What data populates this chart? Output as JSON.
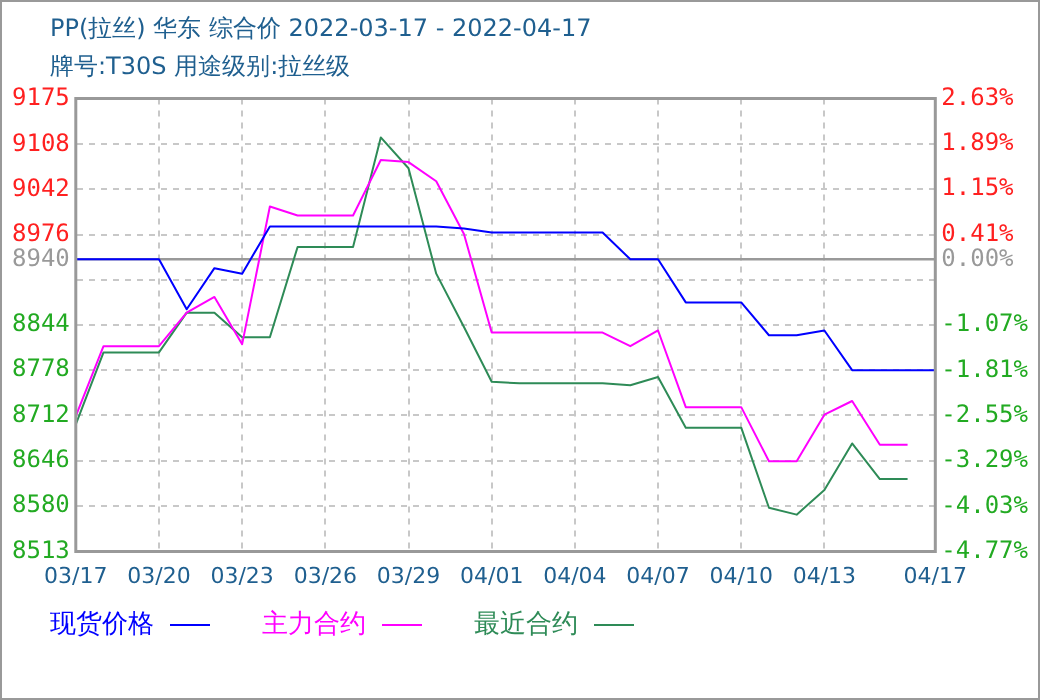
{
  "chart_data": {
    "type": "line",
    "title": "PP(拉丝) 华东 综合价 2022-03-17 - 2022-04-17",
    "subtitle": "牌号:T30S 用途级别:拉丝级",
    "categories": [
      "03/17",
      null,
      null,
      "03/20",
      null,
      null,
      "03/23",
      null,
      null,
      "03/26",
      null,
      null,
      "03/29",
      null,
      null,
      "04/01",
      null,
      null,
      "04/04",
      null,
      null,
      "04/07",
      null,
      null,
      "04/10",
      null,
      null,
      "04/13",
      null,
      null,
      null,
      "04/17"
    ],
    "series": [
      {
        "name": "现货价格",
        "color": "#0000ff",
        "values": [
          8940,
          8940,
          8940,
          8940,
          8867,
          8927,
          8919,
          8988,
          8988,
          8988,
          8988,
          8988,
          8988,
          8988,
          8985,
          8979,
          8979,
          8979,
          8979,
          8979,
          8940,
          8940,
          8877,
          8877,
          8877,
          8829,
          8829,
          8836,
          8778,
          8778,
          8778,
          8778
        ]
      },
      {
        "name": "主力合约",
        "color": "#ff00ff",
        "values": [
          8711,
          8813,
          8813,
          8813,
          8862,
          8885,
          8816,
          9017,
          9004,
          9004,
          9004,
          9085,
          9082,
          9054,
          8977,
          8833,
          8833,
          8833,
          8833,
          8833,
          8813,
          8836,
          8724,
          8724,
          8724,
          8645,
          8645,
          8713,
          8733,
          8669,
          8669,
          null
        ]
      },
      {
        "name": "最近合约",
        "color": "#2e8b57",
        "values": [
          8699,
          8804,
          8804,
          8804,
          8862,
          8862,
          8826,
          8826,
          8958,
          8958,
          8958,
          9118,
          9073,
          8919,
          8841,
          8761,
          8759,
          8759,
          8759,
          8759,
          8756,
          8768,
          8694,
          8694,
          8694,
          8577,
          8567,
          8603,
          8671,
          8619,
          8619,
          null
        ]
      }
    ],
    "ylim": [
      8513,
      9175
    ],
    "yticks": [
      9175,
      9108,
      9042,
      8976,
      8940,
      {
        "value": 8910,
        "label": null
      },
      8844,
      8778,
      8712,
      8646,
      8580,
      8513
    ],
    "y2lim": [
      -4.77,
      2.63
    ],
    "y2ticks": [
      {
        "value": 2.63,
        "label": "2.63%"
      },
      {
        "value": 1.89,
        "label": "1.89%"
      },
      {
        "value": 1.15,
        "label": "1.15%"
      },
      {
        "value": 0.41,
        "label": "0.41%"
      },
      {
        "value": 0,
        "label": "0.00%"
      },
      {
        "value": -1.07,
        "label": "-1.07%"
      },
      {
        "value": -1.81,
        "label": "-1.81%"
      },
      {
        "value": -2.55,
        "label": "-2.55%"
      },
      {
        "value": -3.29,
        "label": "-3.29%"
      },
      {
        "value": -4.03,
        "label": "-4.03%"
      },
      {
        "value": -4.77,
        "label": "-4.77%"
      }
    ],
    "ref_lines": [
      {
        "axis": "y",
        "value": 8940,
        "color": "#999999"
      }
    ],
    "grid": true,
    "legend": "bottom left"
  }
}
